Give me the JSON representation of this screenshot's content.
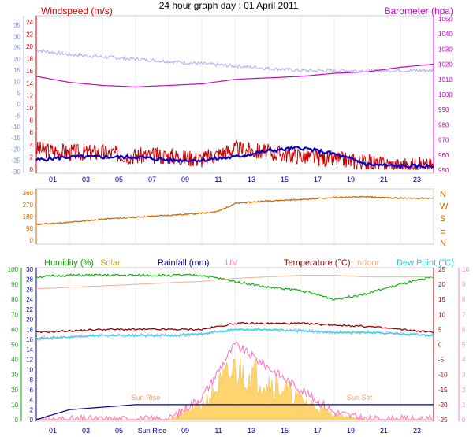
{
  "title": "24 hour graph day : 01 April 2011",
  "colors": {
    "wind": "#cc0000",
    "wind_avg": "#0000cc",
    "temp_indoor_bg": "#a8b0f0",
    "baro": "#cc00cc",
    "dir": "#cc6600",
    "humidity": "#00aa00",
    "solar": "#ffd060",
    "rain": "#000099",
    "uv": "#ff80c0",
    "temp": "#990000",
    "indoor": "#f0b090",
    "dew": "#33dddd",
    "frame": "#cccccc",
    "grid": "#dddddd"
  },
  "x_ticks": [
    "01",
    "03",
    "05",
    "07",
    "09",
    "11",
    "13",
    "15",
    "17",
    "19",
    "21",
    "23"
  ],
  "bottom_x_ticks": [
    "01",
    "03",
    "05",
    "Sun Rise",
    "09",
    "11",
    "13",
    "15",
    "17",
    "19",
    "21",
    "23"
  ],
  "chart_data": [
    {
      "type": "line",
      "title": "Windspeed (m/s)",
      "right_title": "Barometer (hpa)",
      "left_axis_outer": {
        "ticks": [
          "35",
          "30",
          "25",
          "20",
          "15",
          "10",
          "5",
          "0",
          "-5",
          "-10",
          "-15",
          "-20",
          "-25",
          "-30"
        ]
      },
      "left_axis_inner": {
        "ticks": [
          "24",
          "22",
          "20",
          "18",
          "16",
          "14",
          "12",
          "10",
          "8",
          "6",
          "4",
          "2",
          "0"
        ],
        "ylim": [
          0,
          25
        ]
      },
      "right_axis": {
        "ticks": [
          "1050",
          "1040",
          "1030",
          "1020",
          "1010",
          "1000",
          "990",
          "980",
          "970",
          "960",
          "950"
        ],
        "ylim": [
          948,
          1052
        ]
      },
      "x": [
        0,
        2,
        4,
        6,
        8,
        10,
        12,
        14,
        16,
        18,
        20,
        22,
        24
      ],
      "series": [
        {
          "values": [
            6,
            5,
            5,
            4,
            4,
            3,
            6,
            5,
            4,
            3,
            2,
            1,
            1
          ]
        },
        {
          "values": [
            1.5,
            2,
            2,
            2,
            1.5,
            1.5,
            2,
            3,
            3.5,
            2.5,
            0.8,
            0.5,
            0.5
          ]
        },
        {
          "values": [
            1012,
            1008,
            1006,
            1005,
            1006,
            1007,
            1010,
            1011,
            1012,
            1014,
            1015,
            1018,
            1020
          ]
        },
        {
          "values": [
            22,
            20,
            19,
            18,
            17,
            16,
            15,
            14,
            13,
            13,
            13,
            13,
            13
          ]
        }
      ]
    },
    {
      "type": "line",
      "left_axis": {
        "ticks": [
          "360",
          "270",
          "180",
          "90",
          "0"
        ],
        "ylim": [
          0,
          360
        ]
      },
      "right_axis": {
        "ticks": [
          "N",
          "W",
          "S",
          "E",
          "N"
        ]
      },
      "x": [
        0,
        2,
        4,
        6,
        8,
        10,
        11,
        12,
        14,
        16,
        18,
        20,
        22,
        24
      ],
      "values": [
        120,
        135,
        160,
        175,
        190,
        205,
        220,
        280,
        300,
        310,
        325,
        330,
        320,
        320
      ]
    },
    {
      "type": "line",
      "titles": [
        "Humidity (%)",
        "Solar",
        "Rainfall (mm)",
        "UV",
        "Temperature (°C)",
        "Indoor",
        "Dew Point (°C)"
      ],
      "humidity_axis": {
        "ticks": [
          "100",
          "90",
          "80",
          "70",
          "60",
          "50",
          "40",
          "30",
          "20",
          "10",
          "0"
        ],
        "ylim": [
          0,
          100
        ]
      },
      "rain_axis": {
        "ticks": [
          "30",
          "28",
          "26",
          "24",
          "22",
          "20",
          "18",
          "16",
          "14",
          "12",
          "10",
          "8",
          "6",
          "4",
          "2",
          "0"
        ],
        "ylim": [
          0,
          30
        ]
      },
      "temp_axis": {
        "ticks": [
          "25",
          "20",
          "15",
          "10",
          "5",
          "0",
          "-5",
          "-10",
          "-15",
          "-20",
          "-25"
        ],
        "ylim": [
          -25,
          25
        ]
      },
      "uv_axis": {
        "ticks": [
          "10",
          "9",
          "8",
          "7",
          "6",
          "5",
          "4",
          "3",
          "2",
          "1",
          "0"
        ],
        "ylim": [
          0,
          10
        ]
      },
      "annotations": [
        "Sun Rise",
        "Sun Set"
      ],
      "x": [
        0,
        2,
        4,
        6,
        8,
        10,
        12,
        14,
        16,
        18,
        20,
        22,
        24
      ],
      "series": [
        {
          "values": [
            95,
            96,
            96,
            96,
            96,
            96,
            92,
            88,
            86,
            80,
            84,
            90,
            95
          ]
        },
        {
          "values": [
            18.5,
            19,
            19.5,
            20,
            20.5,
            21,
            22,
            22.5,
            23,
            23,
            22.5,
            22.5,
            22.5
          ]
        },
        {
          "values": [
            4,
            4.5,
            5,
            5,
            5,
            5,
            7,
            7,
            7,
            6.5,
            6,
            5,
            4
          ]
        },
        {
          "values": [
            2,
            2.5,
            3,
            3,
            3,
            3.5,
            5,
            5,
            4.5,
            4,
            4,
            3.5,
            3
          ]
        },
        {
          "values": [
            0,
            2,
            2.5,
            3,
            3,
            3,
            3,
            3,
            3,
            3,
            3,
            3,
            3
          ]
        },
        {
          "values": [
            0,
            0,
            0,
            0,
            0,
            3,
            10,
            8,
            4,
            1,
            0,
            0,
            0
          ]
        },
        {
          "values": [
            0,
            0,
            0,
            0,
            0,
            1.5,
            5,
            3.5,
            2,
            0.5,
            0,
            0,
            0
          ]
        }
      ]
    }
  ]
}
